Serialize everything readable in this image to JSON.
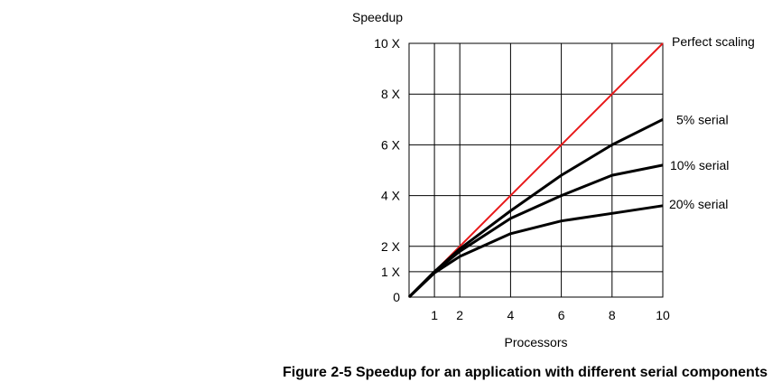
{
  "chart_data": {
    "type": "line",
    "title": "",
    "ylabel": "Speedup",
    "xlabel": "Processors",
    "xlim": [
      0,
      10
    ],
    "ylim": [
      0,
      10
    ],
    "x_ticks": [
      1,
      2,
      4,
      6,
      8,
      10
    ],
    "y_ticks": [
      {
        "value": 0,
        "label": "0"
      },
      {
        "value": 1,
        "label": "1 X"
      },
      {
        "value": 2,
        "label": "2 X"
      },
      {
        "value": 4,
        "label": "4 X"
      },
      {
        "value": 6,
        "label": "6 X"
      },
      {
        "value": 8,
        "label": "8 X"
      },
      {
        "value": 10,
        "label": "10 X"
      }
    ],
    "grid": true,
    "series": [
      {
        "name": "Perfect scaling",
        "color": "#e8191a",
        "points": [
          [
            0,
            0
          ],
          [
            1,
            1
          ],
          [
            2,
            2
          ],
          [
            4,
            4
          ],
          [
            6,
            6
          ],
          [
            8,
            8
          ],
          [
            10,
            10
          ]
        ]
      },
      {
        "name": "5% serial",
        "color": "#000000",
        "points": [
          [
            0,
            0
          ],
          [
            1,
            1
          ],
          [
            2,
            1.9
          ],
          [
            4,
            3.4
          ],
          [
            6,
            4.8
          ],
          [
            8,
            6
          ],
          [
            10,
            7
          ]
        ]
      },
      {
        "name": "10% serial",
        "color": "#000000",
        "points": [
          [
            0,
            0
          ],
          [
            1,
            1
          ],
          [
            2,
            1.8
          ],
          [
            4,
            3.1
          ],
          [
            6,
            4
          ],
          [
            8,
            4.8
          ],
          [
            10,
            5.2
          ]
        ]
      },
      {
        "name": "20% serial",
        "color": "#000000",
        "points": [
          [
            0,
            0
          ],
          [
            1,
            0.95
          ],
          [
            2,
            1.6
          ],
          [
            4,
            2.5
          ],
          [
            6,
            3
          ],
          [
            8,
            3.3
          ],
          [
            10,
            3.6
          ]
        ]
      }
    ]
  },
  "caption": "Figure 2-5  Speedup for an application with different serial components"
}
